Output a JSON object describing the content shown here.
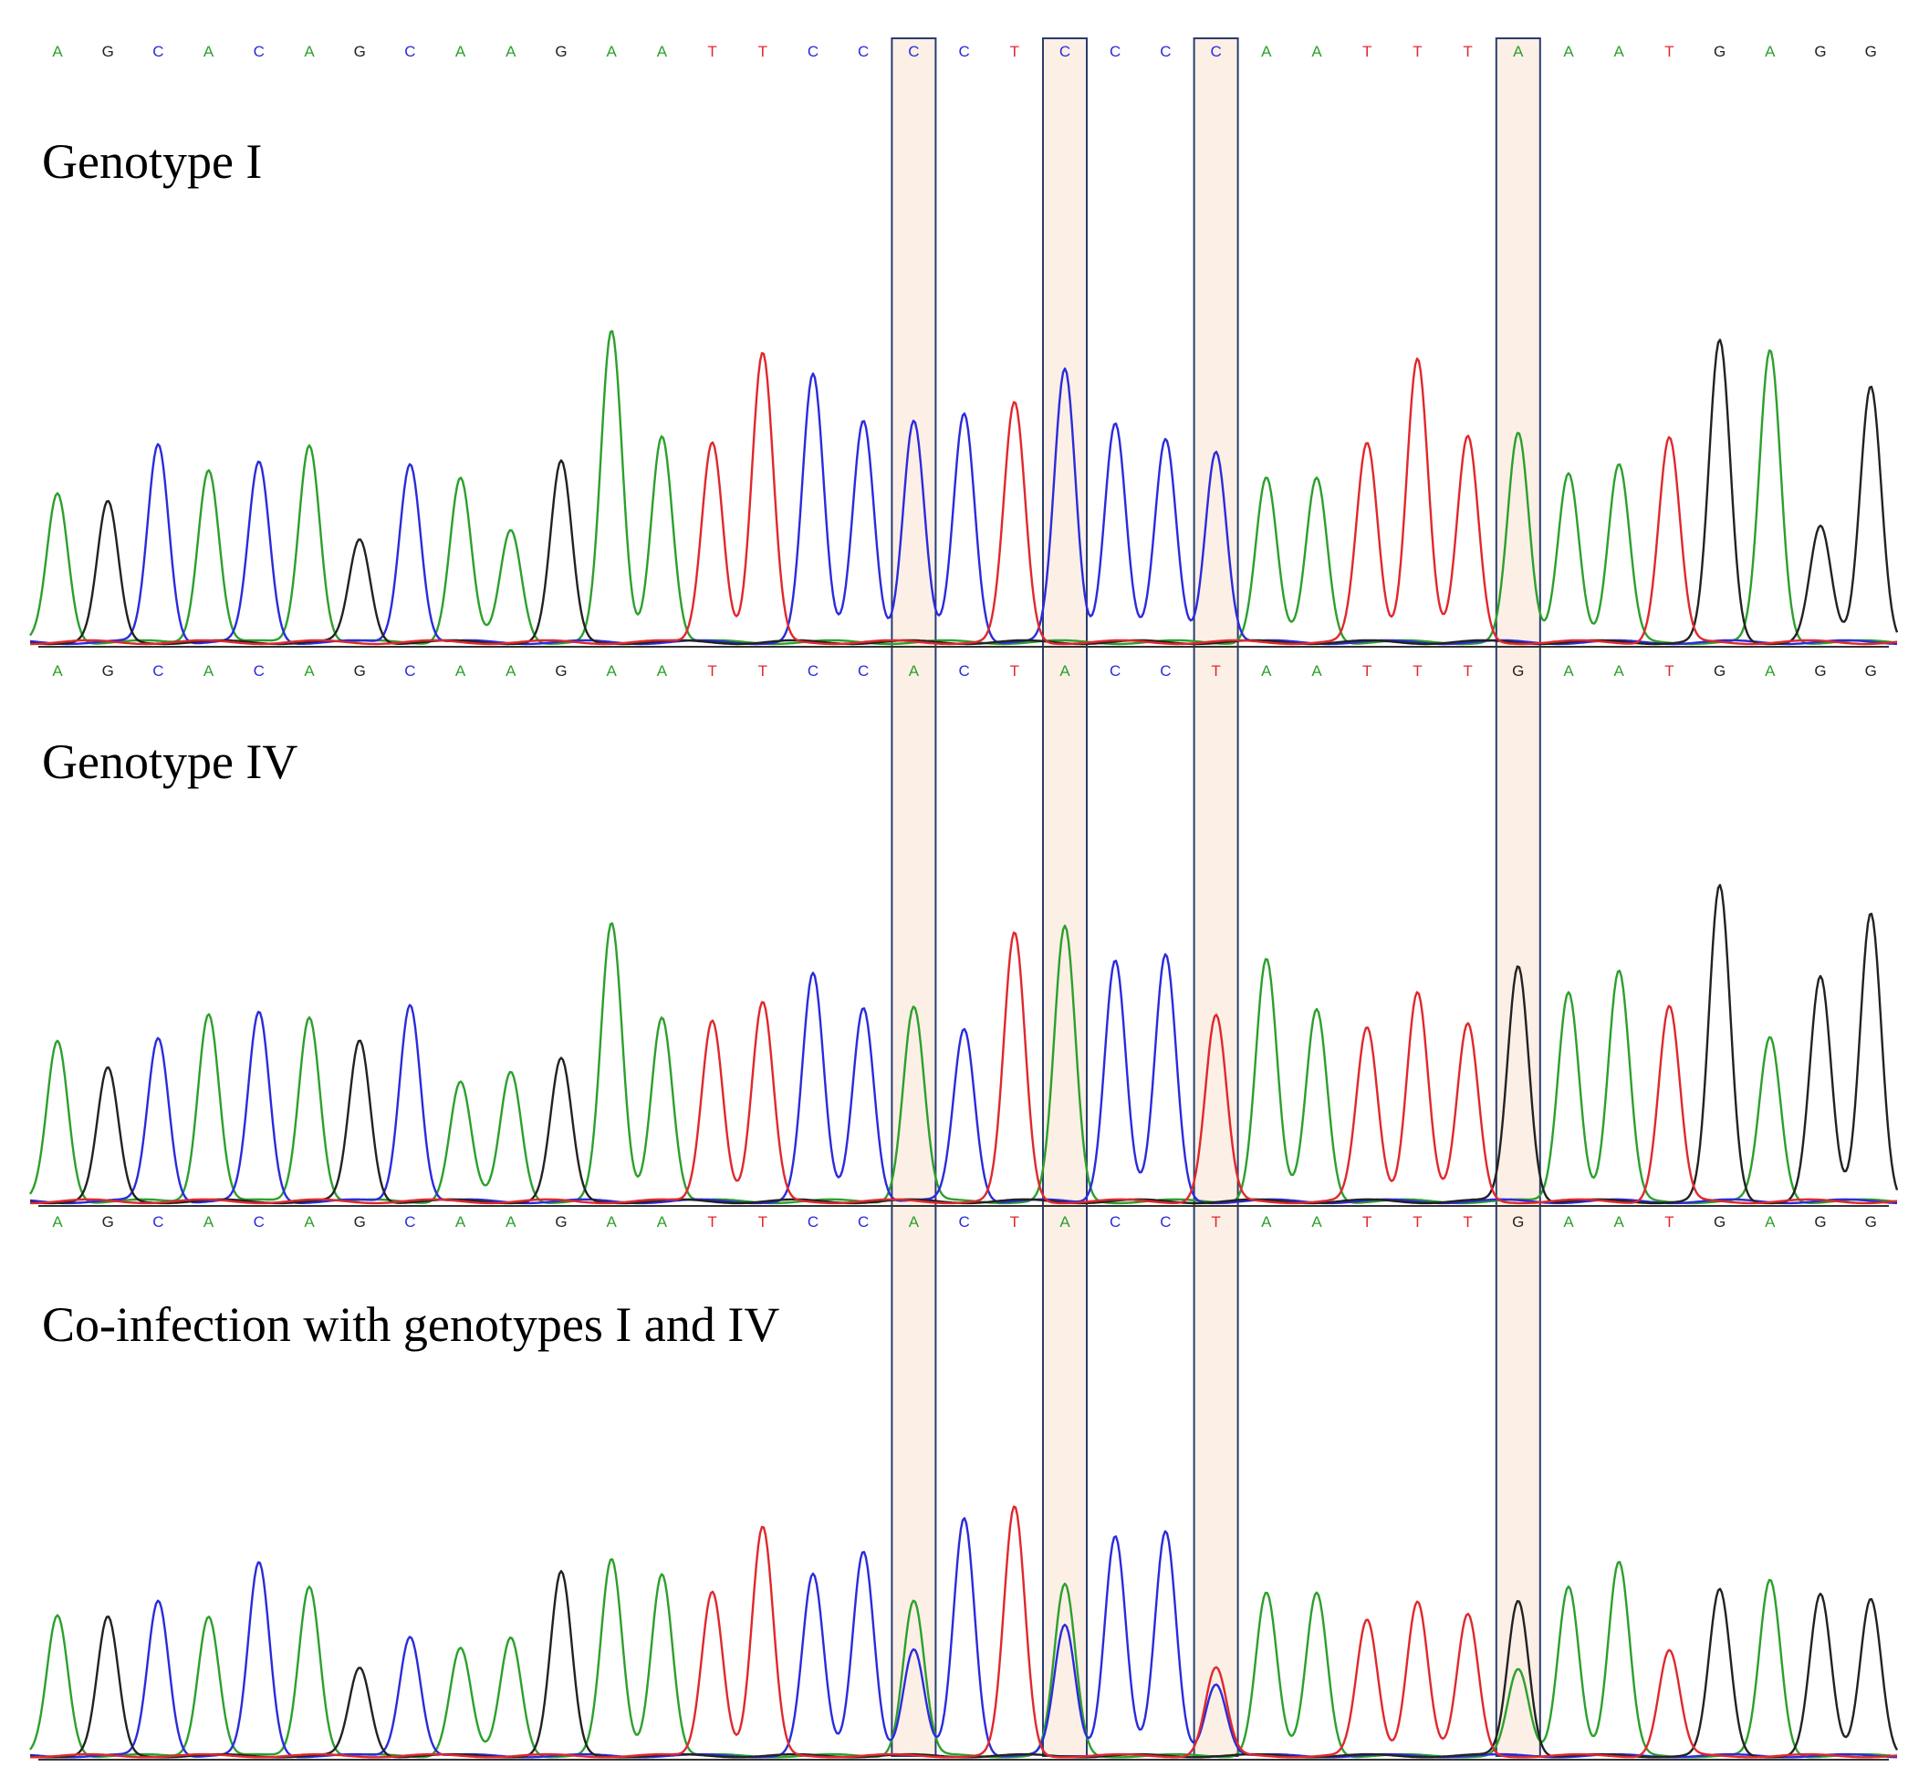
{
  "colors": {
    "A": "#2ca02c",
    "C": "#2b2bdc",
    "G": "#222222",
    "T": "#e0282d",
    "highlight_fill": "#fcefe6",
    "highlight_stroke": "#2a3c6e",
    "baseline": "#333333"
  },
  "highlight_positions": [
    17,
    20,
    23,
    29
  ],
  "panels": [
    {
      "title": "Genotype I",
      "sequence": [
        "A",
        "G",
        "C",
        "A",
        "C",
        "A",
        "G",
        "C",
        "A",
        "A",
        "G",
        "A",
        "A",
        "T",
        "T",
        "C",
        "C",
        "C",
        "C",
        "T",
        "C",
        "C",
        "C",
        "C",
        "A",
        "A",
        "T",
        "T",
        "T",
        "A",
        "A",
        "A",
        "T",
        "G",
        "A",
        "G",
        "G"
      ],
      "peak_heights": [
        0.48,
        0.45,
        0.64,
        0.56,
        0.58,
        0.64,
        0.33,
        0.58,
        0.53,
        0.36,
        0.58,
        1.0,
        0.67,
        0.65,
        0.93,
        0.86,
        0.72,
        0.71,
        0.74,
        0.77,
        0.88,
        0.71,
        0.65,
        0.62,
        0.53,
        0.53,
        0.64,
        0.92,
        0.66,
        0.67,
        0.55,
        0.57,
        0.66,
        0.97,
        0.94,
        0.37,
        0.83
      ]
    },
    {
      "title": "Genotype IV",
      "sequence": [
        "A",
        "G",
        "C",
        "A",
        "C",
        "A",
        "G",
        "C",
        "A",
        "A",
        "G",
        "A",
        "A",
        "T",
        "T",
        "C",
        "C",
        "A",
        "C",
        "T",
        "A",
        "C",
        "C",
        "T",
        "A",
        "A",
        "T",
        "T",
        "T",
        "G",
        "A",
        "A",
        "T",
        "G",
        "A",
        "G",
        "G"
      ],
      "peak_heights": [
        0.51,
        0.42,
        0.52,
        0.6,
        0.6,
        0.59,
        0.51,
        0.63,
        0.38,
        0.41,
        0.45,
        0.88,
        0.59,
        0.58,
        0.63,
        0.72,
        0.62,
        0.62,
        0.55,
        0.85,
        0.87,
        0.77,
        0.78,
        0.59,
        0.77,
        0.61,
        0.55,
        0.67,
        0.56,
        0.75,
        0.67,
        0.73,
        0.62,
        1.0,
        0.52,
        0.71,
        0.92
      ]
    },
    {
      "title": "Co-infection with genotypes I and IV",
      "sequence": [
        "A",
        "G",
        "C",
        "A",
        "C",
        "A",
        "G",
        "C",
        "A",
        "A",
        "G",
        "A",
        "A",
        "T",
        "T",
        "C",
        "C",
        "A",
        "C",
        "T",
        "A",
        "C",
        "C",
        "T",
        "A",
        "A",
        "T",
        "T",
        "T",
        "G",
        "A",
        "A",
        "T",
        "G",
        "A",
        "G",
        "G"
      ],
      "peak_heights": [
        0.56,
        0.55,
        0.62,
        0.56,
        0.77,
        0.68,
        0.35,
        0.48,
        0.43,
        0.47,
        0.73,
        0.78,
        0.73,
        0.66,
        0.91,
        0.72,
        0.82,
        0.62,
        0.95,
        0.99,
        0.68,
        0.88,
        0.89,
        0.35,
        0.65,
        0.65,
        0.54,
        0.62,
        0.56,
        0.62,
        0.68,
        0.77,
        0.42,
        0.66,
        0.7,
        0.64,
        0.63
      ],
      "secondary_peaks": [
        {
          "position": 17,
          "base": "C",
          "height": 0.42
        },
        {
          "position": 20,
          "base": "C",
          "height": 0.52
        },
        {
          "position": 23,
          "base": "C",
          "height": 0.29
        },
        {
          "position": 29,
          "base": "A",
          "height": 0.34
        }
      ]
    }
  ]
}
